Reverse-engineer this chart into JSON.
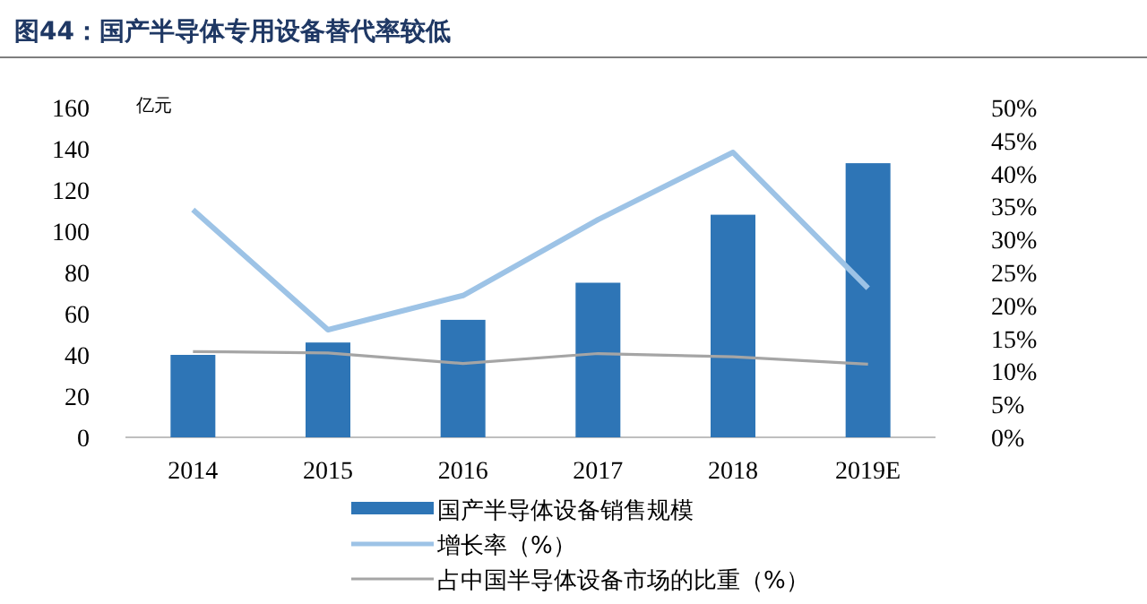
{
  "chart_data": {
    "type": "bar",
    "title": "图44：国产半导体专用设备替代率较低",
    "ylabel": "亿元",
    "categories": [
      "2014",
      "2015",
      "2016",
      "2017",
      "2018",
      "2019E"
    ],
    "series": [
      {
        "name": "国产半导体设备销售规模",
        "color": "#2e75b6",
        "values": [
          40,
          46,
          57,
          75,
          108,
          133
        ]
      },
      {
        "name": "增长率（%）",
        "type": "line",
        "axis": "y2",
        "color": "#9dc3e6",
        "values": [
          34.5,
          16.3,
          21.5,
          33,
          43.2,
          22.6
        ]
      },
      {
        "name": "占中国半导体设备市场的比重（%）",
        "type": "line",
        "axis": "y2",
        "color": "#a5a5a5",
        "values": [
          13,
          12.8,
          11.2,
          12.7,
          12.2,
          11.1
        ]
      }
    ],
    "ylim": [
      0,
      160
    ],
    "yticks": [
      0,
      20,
      40,
      60,
      80,
      100,
      120,
      140,
      160
    ],
    "y2lim": [
      0,
      50
    ],
    "y2ticks": [
      {
        "value": 0,
        "label": "0%"
      },
      {
        "value": 5,
        "label": "5%"
      },
      {
        "value": 10,
        "label": "10%"
      },
      {
        "value": 15,
        "label": "15%"
      },
      {
        "value": 20,
        "label": "20%"
      },
      {
        "value": 25,
        "label": "25%"
      },
      {
        "value": 30,
        "label": "30%"
      },
      {
        "value": 35,
        "label": "35%"
      },
      {
        "value": 40,
        "label": "40%"
      },
      {
        "value": 45,
        "label": "45%"
      },
      {
        "value": 50,
        "label": "50%"
      }
    ],
    "legend": "bottom"
  }
}
